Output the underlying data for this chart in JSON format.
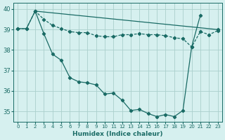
{
  "xlabel": "Humidex (Indice chaleur)",
  "background_color": "#d6f0ef",
  "grid_color": "#aacfcc",
  "line_color": "#1a6b65",
  "xlim": [
    -0.5,
    23.5
  ],
  "ylim": [
    34.5,
    40.3
  ],
  "yticks": [
    35,
    36,
    37,
    38,
    39,
    40
  ],
  "xticks": [
    0,
    1,
    2,
    3,
    4,
    5,
    6,
    7,
    8,
    9,
    10,
    11,
    12,
    13,
    14,
    15,
    16,
    17,
    18,
    19,
    20,
    21,
    22,
    23
  ],
  "line1_x": [
    0,
    1,
    2,
    23
  ],
  "line1_y": [
    39.05,
    39.05,
    39.9,
    39.0
  ],
  "line2_x": [
    0,
    1,
    2,
    3,
    4,
    5,
    6,
    7,
    8,
    9,
    10,
    11,
    12,
    13,
    14,
    15,
    16,
    17,
    18,
    19,
    20,
    21,
    22,
    23
  ],
  "line2_y": [
    39.05,
    39.05,
    39.9,
    39.5,
    39.2,
    39.05,
    38.9,
    38.85,
    38.85,
    38.7,
    38.65,
    38.65,
    38.75,
    38.75,
    38.8,
    38.75,
    38.75,
    38.7,
    38.6,
    38.55,
    38.15,
    38.9,
    38.75,
    38.95
  ],
  "line3_x": [
    2,
    3,
    4,
    5,
    6,
    7,
    8,
    9,
    10,
    11,
    12,
    13,
    14,
    15,
    16,
    17,
    18,
    19,
    20,
    21
  ],
  "line3_y": [
    39.9,
    38.8,
    37.8,
    37.5,
    36.65,
    36.45,
    36.4,
    36.3,
    35.85,
    35.9,
    35.55,
    35.05,
    35.1,
    34.9,
    34.75,
    34.85,
    34.75,
    35.05,
    38.15,
    39.7
  ]
}
